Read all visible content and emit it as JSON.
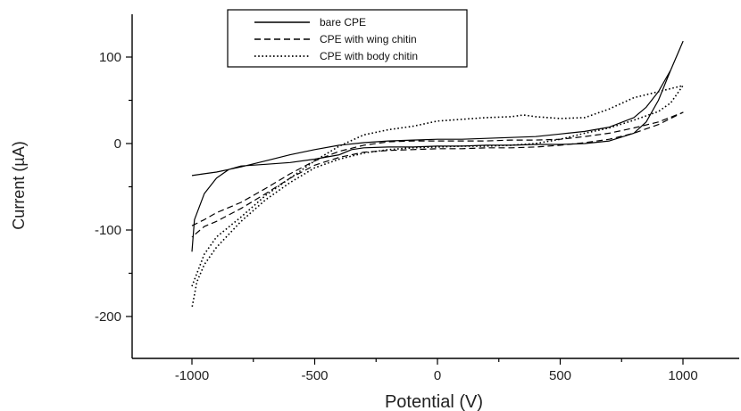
{
  "chart_data": {
    "type": "line",
    "title": "",
    "xlabel": "Potential (V)",
    "ylabel": "Current (µA)",
    "xlim": [
      -1250,
      1250
    ],
    "ylim": [
      -250,
      150
    ],
    "xticks": [
      -1000,
      -500,
      0,
      500,
      1000
    ],
    "xtick_labels": [
      "-1000",
      "-500",
      "0",
      "500",
      "1000"
    ],
    "yticks": [
      -200,
      -100,
      0,
      100
    ],
    "ytick_labels": [
      "-200",
      "-100",
      "0",
      "100"
    ],
    "grid": false,
    "legend_position": "top-left",
    "series": [
      {
        "name": "bare CPE",
        "style": "solid",
        "color": "#000000",
        "x": [
          -1000,
          -950,
          -900,
          -850,
          -800,
          -700,
          -600,
          -500,
          -400,
          -300,
          -200,
          -100,
          0,
          100,
          200,
          300,
          400,
          500,
          600,
          700,
          800,
          850,
          900,
          950,
          1000,
          950,
          900,
          850,
          800,
          700,
          600,
          500,
          400,
          300,
          200,
          100,
          0,
          -100,
          -200,
          -300,
          -350,
          -400,
          -500,
          -600,
          -700,
          -800,
          -850,
          -900,
          -950,
          -990,
          -1000
        ],
        "y": [
          -37,
          -35,
          -33,
          -30,
          -27,
          -20,
          -13,
          -7,
          -2,
          1,
          3,
          4,
          5,
          5,
          6,
          7,
          8,
          11,
          14,
          19,
          30,
          42,
          60,
          85,
          118,
          85,
          50,
          25,
          12,
          3,
          0,
          -1,
          -1,
          -2,
          -2,
          -3,
          -3,
          -4,
          -4,
          -5,
          -7,
          -13,
          -18,
          -22,
          -24,
          -26,
          -30,
          -40,
          -58,
          -88,
          -125
        ]
      },
      {
        "name": "CPE with wing chitin",
        "style": "dashed",
        "color": "#000000",
        "x": [
          -1000,
          -950,
          -900,
          -800,
          -700,
          -600,
          -500,
          -400,
          -300,
          -200,
          -100,
          0,
          100,
          200,
          300,
          400,
          500,
          600,
          700,
          800,
          900,
          1000,
          900,
          800,
          700,
          600,
          500,
          400,
          300,
          200,
          100,
          0,
          -100,
          -200,
          -300,
          -400,
          -500,
          -600,
          -700,
          -800,
          -900,
          -950,
          -1000
        ],
        "y": [
          -95,
          -88,
          -80,
          -68,
          -52,
          -35,
          -20,
          -9,
          -2,
          2,
          3,
          3,
          3,
          3,
          4,
          4,
          5,
          8,
          12,
          18,
          25,
          36,
          22,
          12,
          5,
          1,
          -2,
          -4,
          -5,
          -5,
          -6,
          -6,
          -7,
          -8,
          -10,
          -16,
          -25,
          -40,
          -58,
          -75,
          -90,
          -96,
          -108
        ]
      },
      {
        "name": "CPE with body chitin",
        "style": "dotted",
        "color": "#000000",
        "x": [
          -1000,
          -950,
          -900,
          -800,
          -700,
          -600,
          -500,
          -400,
          -300,
          -200,
          -100,
          0,
          100,
          200,
          300,
          350,
          400,
          500,
          600,
          700,
          800,
          900,
          1000,
          950,
          900,
          800,
          700,
          600,
          500,
          400,
          300,
          200,
          100,
          0,
          -100,
          -200,
          -300,
          -400,
          -500,
          -600,
          -700,
          -800,
          -900,
          -950,
          -980,
          -1000
        ],
        "y": [
          -165,
          -128,
          -108,
          -85,
          -60,
          -40,
          -20,
          -3,
          10,
          16,
          20,
          26,
          28,
          30,
          31,
          33,
          31,
          29,
          30,
          40,
          53,
          60,
          67,
          47,
          37,
          27,
          18,
          12,
          5,
          0,
          -2,
          -3,
          -3,
          -4,
          -5,
          -7,
          -11,
          -18,
          -28,
          -45,
          -65,
          -90,
          -120,
          -140,
          -160,
          -190
        ]
      }
    ]
  }
}
